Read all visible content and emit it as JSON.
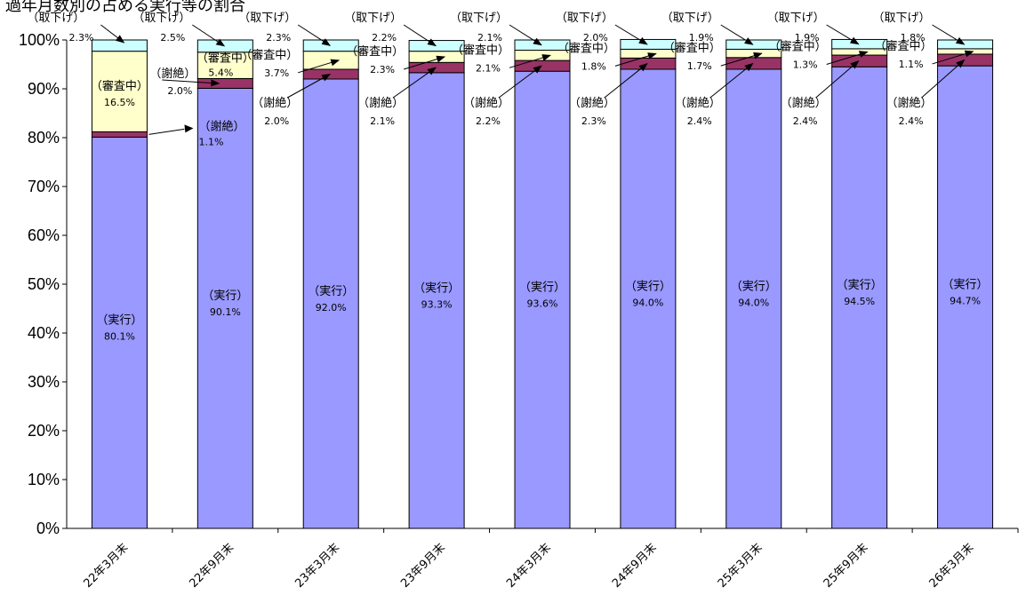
{
  "title": "過年月数別の占める実行等の割合",
  "chart_data": {
    "type": "bar",
    "stacked": true,
    "percent_stacked": true,
    "title": "過年月数別の占める実行等の割合",
    "ylim": [
      0,
      100
    ],
    "yticks": [
      "0%",
      "10%",
      "20%",
      "30%",
      "40%",
      "50%",
      "60%",
      "70%",
      "80%",
      "90%",
      "100%"
    ],
    "categories": [
      "22年3月末",
      "22年9月末",
      "23年3月末",
      "23年9月末",
      "24年3月末",
      "24年9月末",
      "25年3月末",
      "25年9月末",
      "26年3月末"
    ],
    "series": [
      {
        "name": "（実行）",
        "color": "#9999FF",
        "values": [
          80.1,
          90.1,
          92.0,
          93.3,
          93.6,
          94.0,
          94.0,
          94.5,
          94.7
        ]
      },
      {
        "name": "（謝絶）",
        "color": "#993366",
        "values": [
          1.1,
          2.0,
          2.0,
          2.1,
          2.2,
          2.3,
          2.4,
          2.4,
          2.4
        ]
      },
      {
        "name": "（審査中）",
        "color": "#FFFFCC",
        "values": [
          16.5,
          5.4,
          3.7,
          2.3,
          2.1,
          1.8,
          1.7,
          1.3,
          1.1
        ]
      },
      {
        "name": "（取下げ）",
        "color": "#CCFFFF",
        "values": [
          2.3,
          2.5,
          2.3,
          2.2,
          2.1,
          2.0,
          1.9,
          1.9,
          1.8
        ]
      }
    ],
    "value_labels": {
      "jikko": [
        "80.1%",
        "90.1%",
        "92.0%",
        "93.3%",
        "93.6%",
        "94.0%",
        "94.0%",
        "94.5%",
        "94.7%"
      ],
      "shazetsu": [
        "1.1%",
        "2.0%",
        "2.0%",
        "2.1%",
        "2.2%",
        "2.3%",
        "2.4%",
        "2.4%",
        "2.4%"
      ],
      "shinsa": [
        "16.5%",
        "5.4%",
        "3.7%",
        "2.3%",
        "2.1%",
        "1.8%",
        "1.7%",
        "1.3%",
        "1.1%"
      ],
      "torisage": [
        "2.3%",
        "2.5%",
        "2.3%",
        "2.2%",
        "2.1%",
        "2.0%",
        "1.9%",
        "1.9%",
        "1.8%"
      ]
    },
    "grid": false,
    "legend": "none (labels annotated on bars)"
  }
}
